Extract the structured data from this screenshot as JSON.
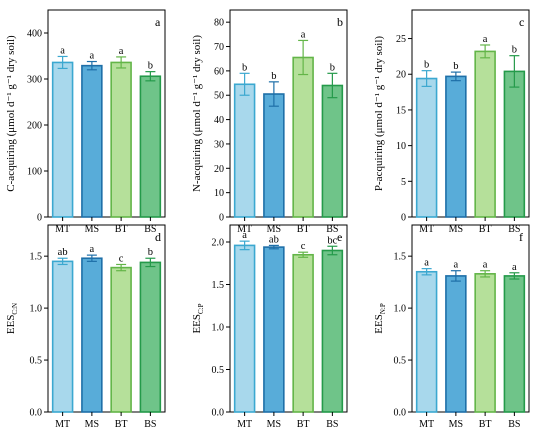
{
  "chart_data": [
    {
      "type": "bar",
      "panel_letter": "a",
      "categories": [
        "MT",
        "MS",
        "BT",
        "BS"
      ],
      "values": [
        336,
        329,
        336,
        306
      ],
      "errors": [
        13,
        9,
        12,
        10
      ],
      "significance": [
        "a",
        "a",
        "a",
        "b"
      ],
      "ylabel": "C-acquiring (μmol d⁻¹ g⁻¹ dry soil)",
      "ylim": [
        0,
        450
      ],
      "yticks": [
        0,
        100,
        200,
        300,
        400
      ],
      "ytick_labels": [
        "0",
        "100",
        "200",
        "300",
        "400"
      ]
    },
    {
      "type": "bar",
      "panel_letter": "b",
      "categories": [
        "MT",
        "MS",
        "BT",
        "BS"
      ],
      "values": [
        54.5,
        50.5,
        65.5,
        54
      ],
      "errors": [
        4.5,
        5,
        7,
        5
      ],
      "significance": [
        "b",
        "b",
        "a",
        "b"
      ],
      "ylabel": "N-acquiring (μmol d⁻¹ g⁻¹ dry soil)",
      "ylim": [
        0,
        85
      ],
      "yticks": [
        0,
        10,
        20,
        30,
        40,
        50,
        60,
        70,
        80
      ],
      "ytick_labels": [
        "0",
        "10",
        "20",
        "30",
        "40",
        "50",
        "60",
        "70",
        "80"
      ]
    },
    {
      "type": "bar",
      "panel_letter": "c",
      "categories": [
        "MT",
        "MS",
        "BT",
        "BS"
      ],
      "values": [
        19.4,
        19.7,
        23.2,
        20.4
      ],
      "errors": [
        1.1,
        0.6,
        0.9,
        2.2
      ],
      "significance": [
        "b",
        "b",
        "a",
        "b"
      ],
      "ylabel": "P-acquiring (μmol d⁻¹ g⁻¹ dry soil)",
      "ylim": [
        0,
        29
      ],
      "yticks": [
        0,
        5,
        10,
        15,
        20,
        25
      ],
      "ytick_labels": [
        "0",
        "5",
        "10",
        "15",
        "20",
        "25"
      ]
    },
    {
      "type": "bar",
      "panel_letter": "d",
      "categories": [
        "MT",
        "MS",
        "BT",
        "BS"
      ],
      "values": [
        1.45,
        1.48,
        1.39,
        1.44
      ],
      "errors": [
        0.03,
        0.03,
        0.03,
        0.04
      ],
      "significance": [
        "ab",
        "a",
        "c",
        "b"
      ],
      "ylabel": "EES",
      "ylabel_sub": "C:N",
      "ylim": [
        0,
        1.8
      ],
      "yticks": [
        0,
        0.5,
        1.0,
        1.5
      ],
      "ytick_labels": [
        "0.0",
        "0.5",
        "1.0",
        "1.5"
      ]
    },
    {
      "type": "bar",
      "panel_letter": "e",
      "categories": [
        "MT",
        "MS",
        "BT",
        "BS"
      ],
      "values": [
        1.96,
        1.94,
        1.85,
        1.9
      ],
      "errors": [
        0.05,
        0.02,
        0.03,
        0.05
      ],
      "significance": [
        "a",
        "ab",
        "c",
        "bc"
      ],
      "ylabel": "EES",
      "ylabel_sub": "C:P",
      "ylim": [
        0,
        2.2
      ],
      "yticks": [
        0,
        0.5,
        1.0,
        1.5,
        2.0
      ],
      "ytick_labels": [
        "0.0",
        "0.5",
        "1.0",
        "1.5",
        "2.0"
      ]
    },
    {
      "type": "bar",
      "panel_letter": "f",
      "categories": [
        "MT",
        "MS",
        "BT",
        "BS"
      ],
      "values": [
        1.35,
        1.31,
        1.33,
        1.31
      ],
      "errors": [
        0.03,
        0.05,
        0.03,
        0.03
      ],
      "significance": [
        "a",
        "a",
        "a",
        "a"
      ],
      "ylabel": "EES",
      "ylabel_sub": "N:P",
      "ylim": [
        0,
        1.8
      ],
      "yticks": [
        0,
        0.5,
        1.0,
        1.5
      ],
      "ytick_labels": [
        "0.0",
        "0.5",
        "1.0",
        "1.5"
      ]
    }
  ],
  "colors": {
    "fills": [
      "#a8d8ec",
      "#58acd9",
      "#b5e09a",
      "#6fc489"
    ],
    "strokes": [
      "#3ba8d0",
      "#1e6fa8",
      "#63b548",
      "#249a4a"
    ]
  }
}
